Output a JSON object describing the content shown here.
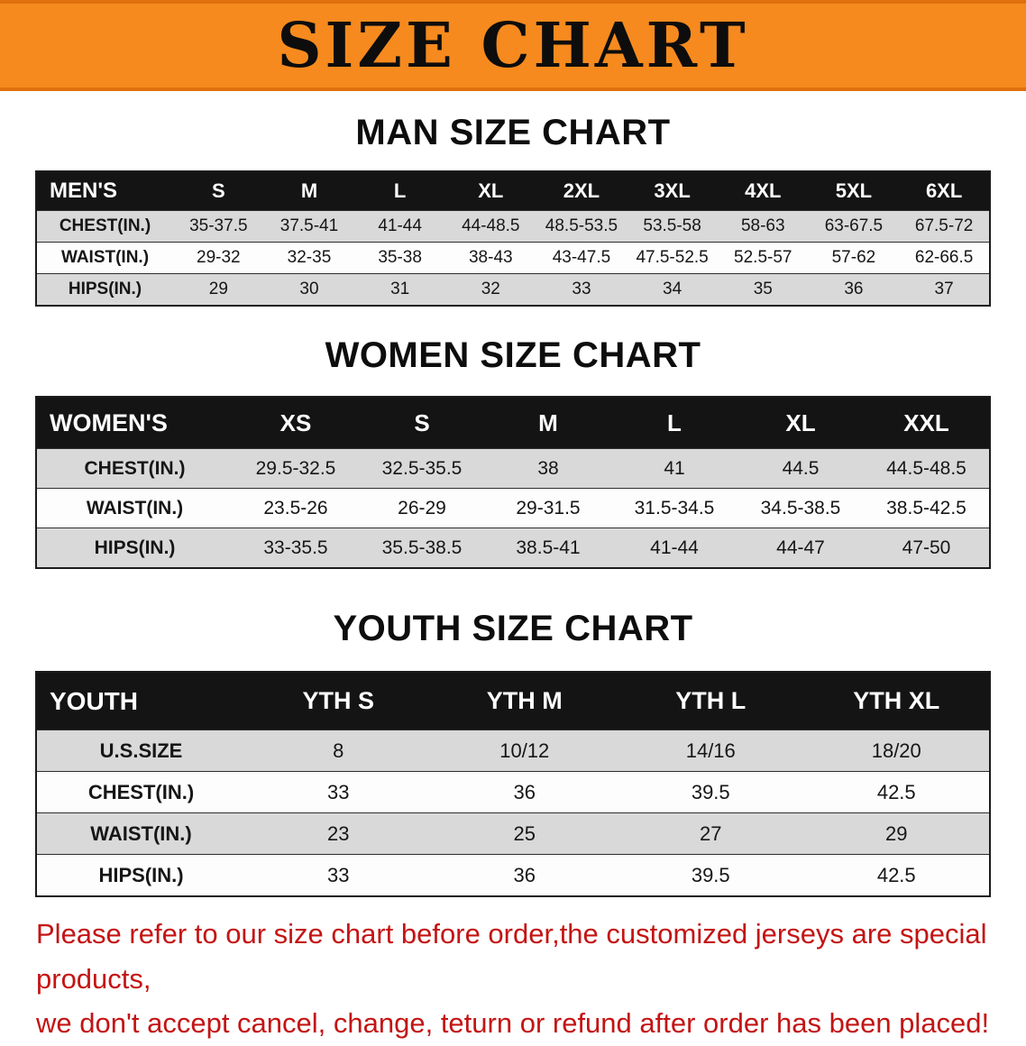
{
  "banner": {
    "title": "SIZE CHART",
    "bg_color": "#f68a1e",
    "text_color": "#0d0d0d"
  },
  "sections": [
    {
      "heading": "MAN SIZE CHART",
      "table_id": "mens-size-table",
      "table": {
        "header": [
          "MEN'S",
          "S",
          "M",
          "L",
          "XL",
          "2XL",
          "3XL",
          "4XL",
          "5XL",
          "6XL"
        ],
        "rows": [
          {
            "label": "CHEST(IN.)",
            "values": [
              "35-37.5",
              "37.5-41",
              "41-44",
              "44-48.5",
              "48.5-53.5",
              "53.5-58",
              "58-63",
              "63-67.5",
              "67.5-72"
            ]
          },
          {
            "label": "WAIST(IN.)",
            "values": [
              "29-32",
              "32-35",
              "35-38",
              "38-43",
              "43-47.5",
              "47.5-52.5",
              "52.5-57",
              "57-62",
              "62-66.5"
            ]
          },
          {
            "label": "HIPS(IN.)",
            "values": [
              "29",
              "30",
              "31",
              "32",
              "33",
              "34",
              "35",
              "36",
              "37"
            ]
          }
        ]
      }
    },
    {
      "heading": "WOMEN SIZE CHART",
      "table_id": "womens-size-table",
      "table": {
        "header": [
          "WOMEN'S",
          "XS",
          "S",
          "M",
          "L",
          "XL",
          "XXL"
        ],
        "rows": [
          {
            "label": "CHEST(IN.)",
            "values": [
              "29.5-32.5",
              "32.5-35.5",
              "38",
              "41",
              "44.5",
              "44.5-48.5"
            ]
          },
          {
            "label": "WAIST(IN.)",
            "values": [
              "23.5-26",
              "26-29",
              "29-31.5",
              "31.5-34.5",
              "34.5-38.5",
              "38.5-42.5"
            ]
          },
          {
            "label": "HIPS(IN.)",
            "values": [
              "33-35.5",
              "35.5-38.5",
              "38.5-41",
              "41-44",
              "44-47",
              "47-50"
            ]
          }
        ]
      }
    },
    {
      "heading": "YOUTH SIZE CHART",
      "table_id": "youth-size-table",
      "table": {
        "header": [
          "YOUTH",
          "YTH S",
          "YTH M",
          "YTH L",
          "YTH XL"
        ],
        "rows": [
          {
            "label": "U.S.SIZE",
            "values": [
              "8",
              "10/12",
              "14/16",
              "18/20"
            ]
          },
          {
            "label": "CHEST(IN.)",
            "values": [
              "33",
              "36",
              "39.5",
              "42.5"
            ]
          },
          {
            "label": "WAIST(IN.)",
            "values": [
              "23",
              "25",
              "27",
              "29"
            ]
          },
          {
            "label": "HIPS(IN.)",
            "values": [
              "33",
              "36",
              "39.5",
              "42.5"
            ]
          }
        ]
      }
    }
  ],
  "footer": {
    "line1": "Please refer to our size chart before order,the customized jerseys are special products,",
    "line2": "we don't accept cancel, change, teturn or refund after order has been placed!",
    "text_color": "#c41414"
  }
}
